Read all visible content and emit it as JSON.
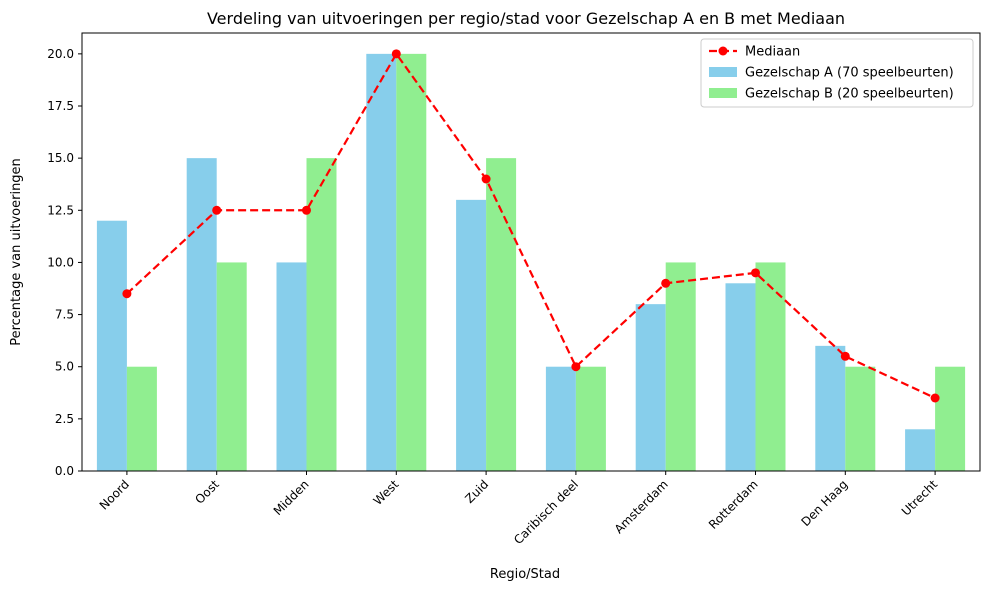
{
  "chart_data": {
    "type": "bar",
    "title": "Verdeling van uitvoeringen per regio/stad voor Gezelschap A en B met Mediaan",
    "xlabel": "Regio/Stad",
    "ylabel": "Percentage van uitvoeringen",
    "ylim": [
      0,
      21
    ],
    "yticks": [
      "0.0",
      "2.5",
      "5.0",
      "7.5",
      "10.0",
      "12.5",
      "15.0",
      "17.5",
      "20.0"
    ],
    "categories": [
      "Noord",
      "Oost",
      "Midden",
      "West",
      "Zuid",
      "Caribisch deel",
      "Amsterdam",
      "Rotterdam",
      "Den Haag",
      "Utrecht"
    ],
    "series": [
      {
        "name": "Gezelschap A (70 speelbeurten)",
        "kind": "bar",
        "color": "#87CEEB",
        "values": [
          12,
          15,
          10,
          20,
          13,
          5,
          8,
          9,
          6,
          2
        ]
      },
      {
        "name": "Gezelschap B (20 speelbeurten)",
        "kind": "bar",
        "color": "#90EE90",
        "values": [
          5,
          10,
          15,
          20,
          15,
          5,
          10,
          10,
          5,
          5
        ]
      },
      {
        "name": "Mediaan",
        "kind": "line",
        "color": "#FF0000",
        "line_style": "dashed",
        "marker": "circle",
        "values": [
          8.5,
          12.5,
          12.5,
          20,
          14,
          5,
          9,
          9.5,
          5.5,
          3.5
        ]
      }
    ],
    "legend_position": "top-right",
    "grid": false
  }
}
